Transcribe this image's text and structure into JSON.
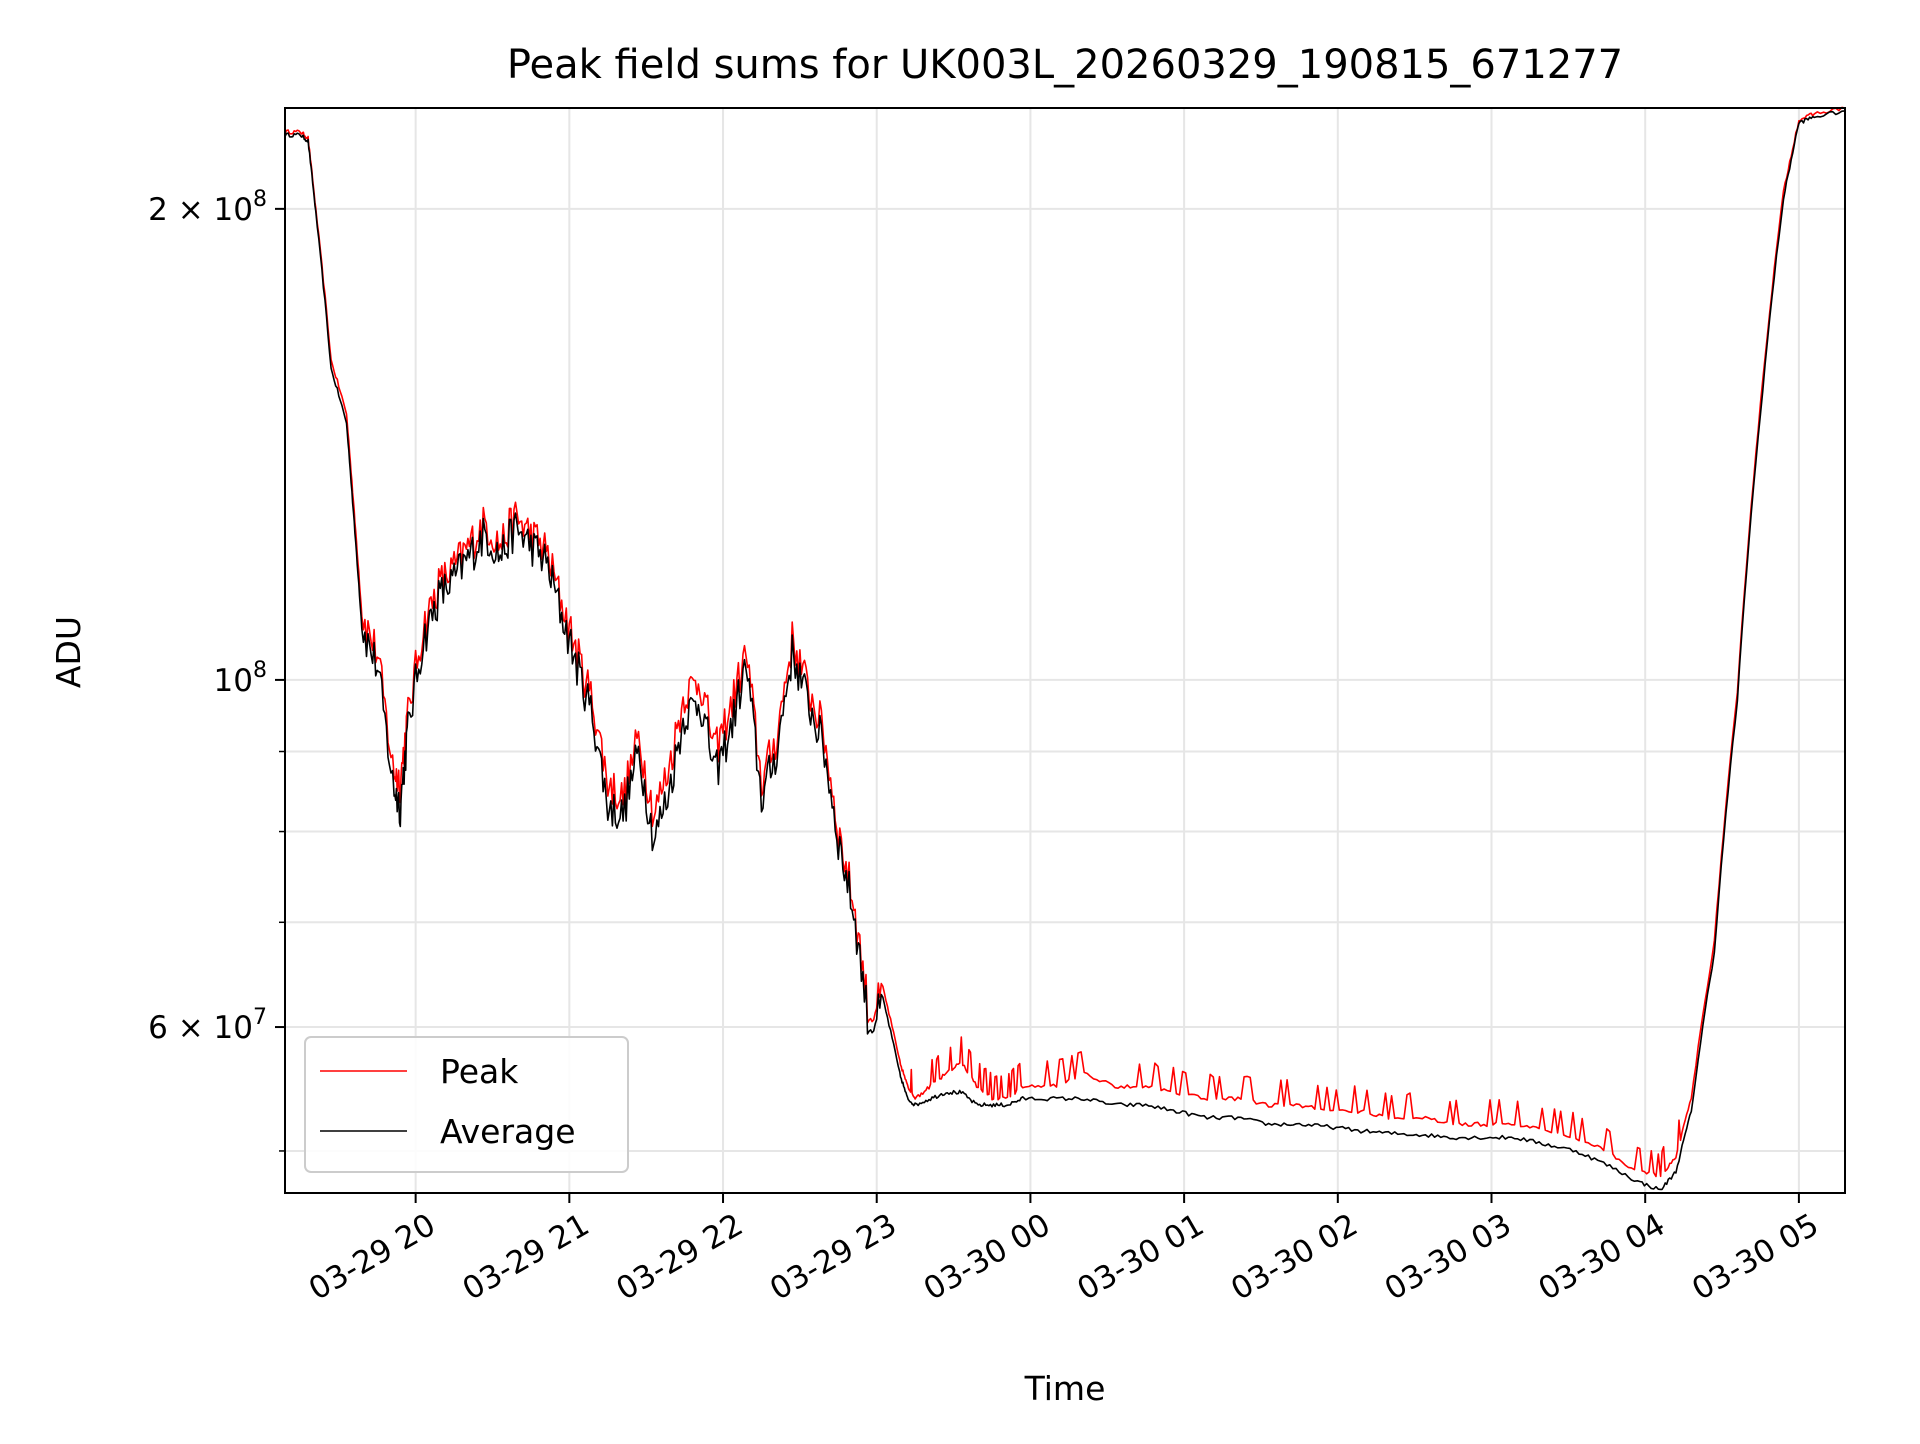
{
  "chart_data": {
    "type": "line",
    "title": "Peak field sums for UK003L_20260329_190815_671277",
    "xlabel": "Time",
    "ylabel": "ADU",
    "yscale": "log",
    "ylim": [
      47000000,
      232000000
    ],
    "xlim_hours": [
      0.0,
      10.15
    ],
    "grid": true,
    "legend_location": "lower-left",
    "x_ticks": [
      {
        "label": "03-29 20",
        "hour": 0.85
      },
      {
        "label": "03-29 21",
        "hour": 1.85
      },
      {
        "label": "03-29 22",
        "hour": 2.85
      },
      {
        "label": "03-29 23",
        "hour": 3.85
      },
      {
        "label": "03-30 00",
        "hour": 4.85
      },
      {
        "label": "03-30 01",
        "hour": 5.85
      },
      {
        "label": "03-30 02",
        "hour": 6.85
      },
      {
        "label": "03-30 03",
        "hour": 7.85
      },
      {
        "label": "03-30 04",
        "hour": 8.85
      },
      {
        "label": "03-30 05",
        "hour": 9.85
      }
    ],
    "y_ticks_major": [
      {
        "mantissa": "10",
        "exponent": "8",
        "value": 100000000
      },
      {
        "mantissa": "2 × 10",
        "exponent": "8",
        "value": 200000000
      },
      {
        "mantissa": "6 × 10",
        "exponent": "7",
        "value": 60000000
      }
    ],
    "y_ticks_minor": [
      50000000,
      70000000,
      80000000,
      90000000
    ],
    "start_time_note": "series starts 03-29 19:08 (hour 0 = 19:08)",
    "series": [
      {
        "name": "Peak",
        "color": "#ff0000",
        "x_hours": [
          0.0,
          0.1,
          0.15,
          0.2,
          0.3,
          0.4,
          0.45,
          0.5,
          0.6,
          0.7,
          0.75,
          0.8,
          0.9,
          1.0,
          1.1,
          1.2,
          1.3,
          1.4,
          1.5,
          1.6,
          1.7,
          1.8,
          1.9,
          2.0,
          2.1,
          2.2,
          2.3,
          2.4,
          2.5,
          2.6,
          2.7,
          2.8,
          2.9,
          3.0,
          3.1,
          3.2,
          3.3,
          3.4,
          3.5,
          3.6,
          3.7,
          3.8,
          3.9,
          4.0,
          4.05,
          4.1,
          4.2,
          4.3,
          4.4,
          4.5,
          4.6,
          4.7,
          4.8,
          5.0,
          5.2,
          5.4,
          5.6,
          5.8,
          6.0,
          6.2,
          6.4,
          6.6,
          6.8,
          7.0,
          7.2,
          7.4,
          7.6,
          7.8,
          8.0,
          8.2,
          8.4,
          8.6,
          8.8,
          8.95,
          9.05,
          9.15,
          9.3,
          9.45,
          9.6,
          9.75,
          9.85,
          9.95,
          10.15
        ],
        "values": [
          224,
          224,
          222,
          200,
          160,
          148,
          128,
          110,
          104,
          88,
          86,
          95,
          108,
          115,
          118,
          122,
          126,
          122,
          127,
          124,
          121,
          112,
          104,
          97,
          86,
          84,
          92,
          82,
          88,
          98,
          100,
          90,
          96,
          104,
          86,
          92,
          106,
          99,
          93,
          80,
          72,
          61,
          63,
          57,
          55,
          54,
          55,
          56,
          57,
          55,
          54,
          54,
          55,
          55,
          56,
          55,
          55,
          54.5,
          54,
          54,
          53.5,
          53.5,
          53,
          53,
          52.5,
          52.5,
          52,
          52,
          52,
          51.5,
          51,
          50,
          48.5,
          48.2,
          49.5,
          54,
          68,
          98,
          150,
          205,
          228,
          230,
          232
        ]
      },
      {
        "name": "Average",
        "color": "#000000",
        "x_hours": [
          0.0,
          0.1,
          0.15,
          0.2,
          0.3,
          0.4,
          0.45,
          0.5,
          0.6,
          0.7,
          0.75,
          0.8,
          0.9,
          1.0,
          1.1,
          1.2,
          1.3,
          1.4,
          1.5,
          1.6,
          1.7,
          1.8,
          1.9,
          2.0,
          2.1,
          2.2,
          2.3,
          2.4,
          2.5,
          2.6,
          2.7,
          2.8,
          2.9,
          3.0,
          3.1,
          3.2,
          3.3,
          3.4,
          3.5,
          3.6,
          3.7,
          3.8,
          3.9,
          4.0,
          4.05,
          4.1,
          4.2,
          4.3,
          4.4,
          4.5,
          4.6,
          4.7,
          4.8,
          5.0,
          5.2,
          5.4,
          5.6,
          5.8,
          6.0,
          6.2,
          6.4,
          6.6,
          6.8,
          7.0,
          7.2,
          7.4,
          7.6,
          7.8,
          8.0,
          8.2,
          8.4,
          8.6,
          8.8,
          8.95,
          9.05,
          9.15,
          9.3,
          9.45,
          9.6,
          9.75,
          9.85,
          9.95,
          10.15
        ],
        "values": [
          223,
          223,
          221,
          199,
          158,
          146,
          126,
          108,
          102,
          86,
          83,
          93,
          106,
          113,
          116,
          120,
          124,
          120,
          125,
          122,
          119,
          110,
          102,
          95,
          83,
          82,
          90,
          79,
          85,
          95,
          97,
          87,
          93,
          102,
          84,
          90,
          104,
          97,
          91,
          79,
          71,
          60,
          62,
          56,
          54,
          53.5,
          54,
          54.5,
          54.5,
          53.5,
          53.5,
          53.5,
          54,
          54,
          54,
          53.5,
          53.5,
          53,
          52.5,
          52.5,
          52,
          52,
          51.8,
          51.5,
          51.3,
          51.2,
          51,
          51,
          51,
          50.5,
          50,
          49,
          47.8,
          47.2,
          48.5,
          53,
          67,
          97,
          148,
          203,
          227,
          229,
          231
        ]
      }
    ]
  }
}
